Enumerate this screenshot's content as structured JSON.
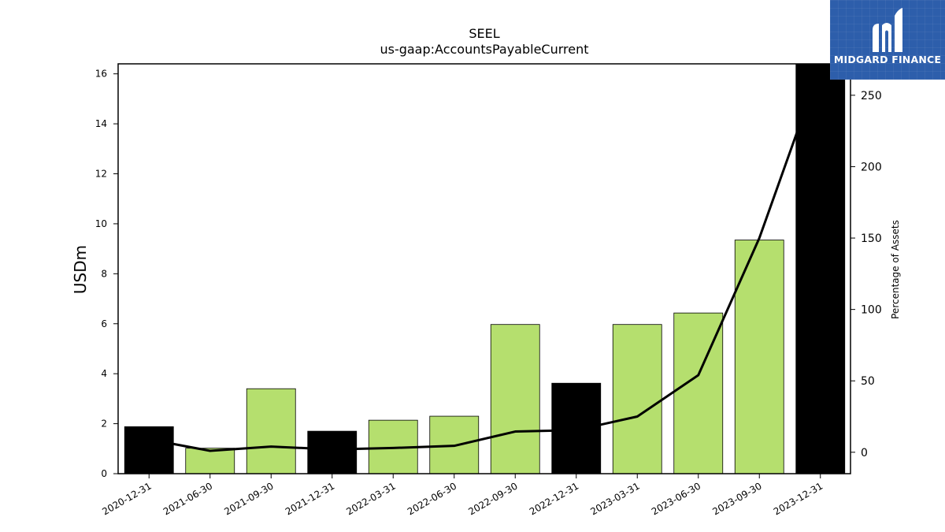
{
  "chart_data": {
    "type": "bar",
    "title": "SEEL",
    "subtitle": "us-gaap:AccountsPayableCurrent",
    "ylabel": "USDm",
    "y2label": "Percentage of Assets",
    "categories": [
      "2020-12-31",
      "2021-06-30",
      "2021-09-30",
      "2021-12-31",
      "2022-03-31",
      "2022-06-30",
      "2022-09-30",
      "2022-12-31",
      "2023-03-31",
      "2023-06-30",
      "2023-09-30",
      "2023-12-31"
    ],
    "series": [
      {
        "values": [
          1.88,
          1.02,
          3.4,
          1.7,
          2.14,
          2.3,
          5.97,
          3.62,
          5.97,
          6.43,
          9.35,
          16.4
        ],
        "colors": [
          "#000000",
          "#b5df6e",
          "#b5df6e",
          "#000000",
          "#b5df6e",
          "#b5df6e",
          "#b5df6e",
          "#000000",
          "#b5df6e",
          "#b5df6e",
          "#b5df6e",
          "#000000"
        ]
      },
      {
        "values": [
          9,
          1,
          4,
          2,
          3,
          4.5,
          14.5,
          15.5,
          25,
          54,
          150,
          270
        ],
        "axis": "right",
        "color": "#000000"
      }
    ],
    "ylim": [
      0,
      16.4
    ],
    "y2lim": [
      -15,
      272
    ],
    "yticks": [
      0,
      2,
      4,
      6,
      8,
      10,
      12,
      14,
      16
    ],
    "y2ticks": [
      0,
      50,
      100,
      150,
      200,
      250
    ],
    "grid": false
  },
  "logo": {
    "text": "MIDGARD FINANCE"
  }
}
